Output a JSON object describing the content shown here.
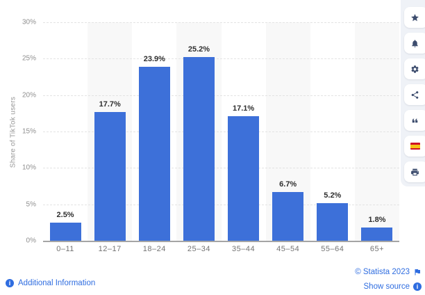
{
  "chart_data": {
    "type": "bar",
    "title": "",
    "xlabel": "",
    "ylabel": "Share of TikTok users",
    "categories": [
      "0–11",
      "12–17",
      "18–24",
      "25–34",
      "35–44",
      "45–54",
      "55–64",
      "65+"
    ],
    "values": [
      2.5,
      17.7,
      23.9,
      25.2,
      17.1,
      6.7,
      5.2,
      1.8
    ],
    "value_labels": [
      "2.5%",
      "17.7%",
      "23.9%",
      "25.2%",
      "17.1%",
      "6.7%",
      "5.2%",
      "1.8%"
    ],
    "ylim": [
      0,
      30
    ],
    "ytick_values": [
      0,
      5,
      10,
      15,
      20,
      25,
      30
    ],
    "ytick_labels": [
      "0%",
      "5%",
      "10%",
      "15%",
      "20%",
      "25%",
      "30%"
    ],
    "grid": true,
    "legend": false,
    "bar_color": "#3d70d9",
    "plot_band_color": "#f8f8f8"
  },
  "sidebar": {
    "items": [
      {
        "name": "favorite-button",
        "icon": "star-icon"
      },
      {
        "name": "notifications-button",
        "icon": "bell-icon"
      },
      {
        "name": "settings-button",
        "icon": "gear-icon"
      },
      {
        "name": "share-button",
        "icon": "share-icon"
      },
      {
        "name": "cite-button",
        "icon": "quote-icon"
      },
      {
        "name": "language-button",
        "icon": "spanish-flag-icon"
      },
      {
        "name": "print-button",
        "icon": "printer-icon"
      }
    ]
  },
  "footer": {
    "copyright": "© Statista 2023",
    "show_source": "Show source",
    "additional_info": "Additional Information",
    "info_glyph": "i"
  },
  "colors": {
    "bar": "#3d70d9",
    "link_blue": "#2f6de0",
    "icon_navy": "#3d4d6e",
    "sidebar_bg": "#eff2f7"
  }
}
